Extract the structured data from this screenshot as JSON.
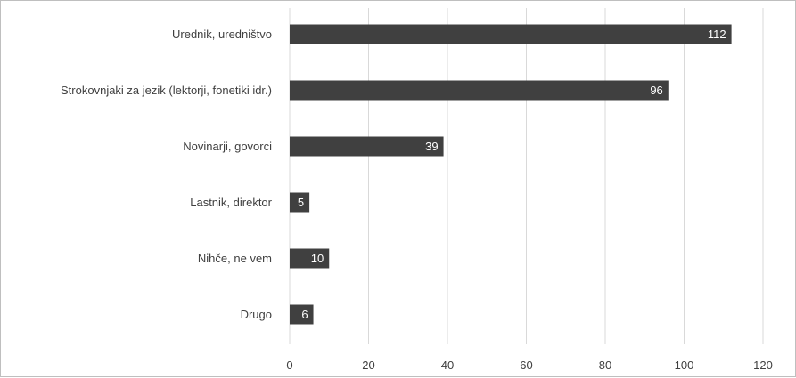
{
  "chart_data": {
    "type": "bar",
    "orientation": "horizontal",
    "categories": [
      "Urednik, uredništvo",
      "Strokovnjaki za jezik (lektorji, fonetiki idr.)",
      "Novinarji, govorci",
      "Lastnik, direktor",
      "Nihče, ne vem",
      "Drugo"
    ],
    "values": [
      112,
      96,
      39,
      5,
      10,
      6
    ],
    "data_labels": [
      "112",
      "96",
      "39",
      "5",
      "10",
      "6"
    ],
    "xlim": [
      0,
      120
    ],
    "x_ticks": [
      0,
      20,
      40,
      60,
      80,
      100,
      120
    ],
    "x_tick_labels": [
      "0",
      "20",
      "40",
      "60",
      "80",
      "100",
      "120"
    ],
    "grid": "vertical",
    "legend": "none",
    "colors": {
      "bar": "#404040",
      "grid": "#d9d9d9",
      "text": "#404040",
      "label": "#ffffff"
    }
  }
}
